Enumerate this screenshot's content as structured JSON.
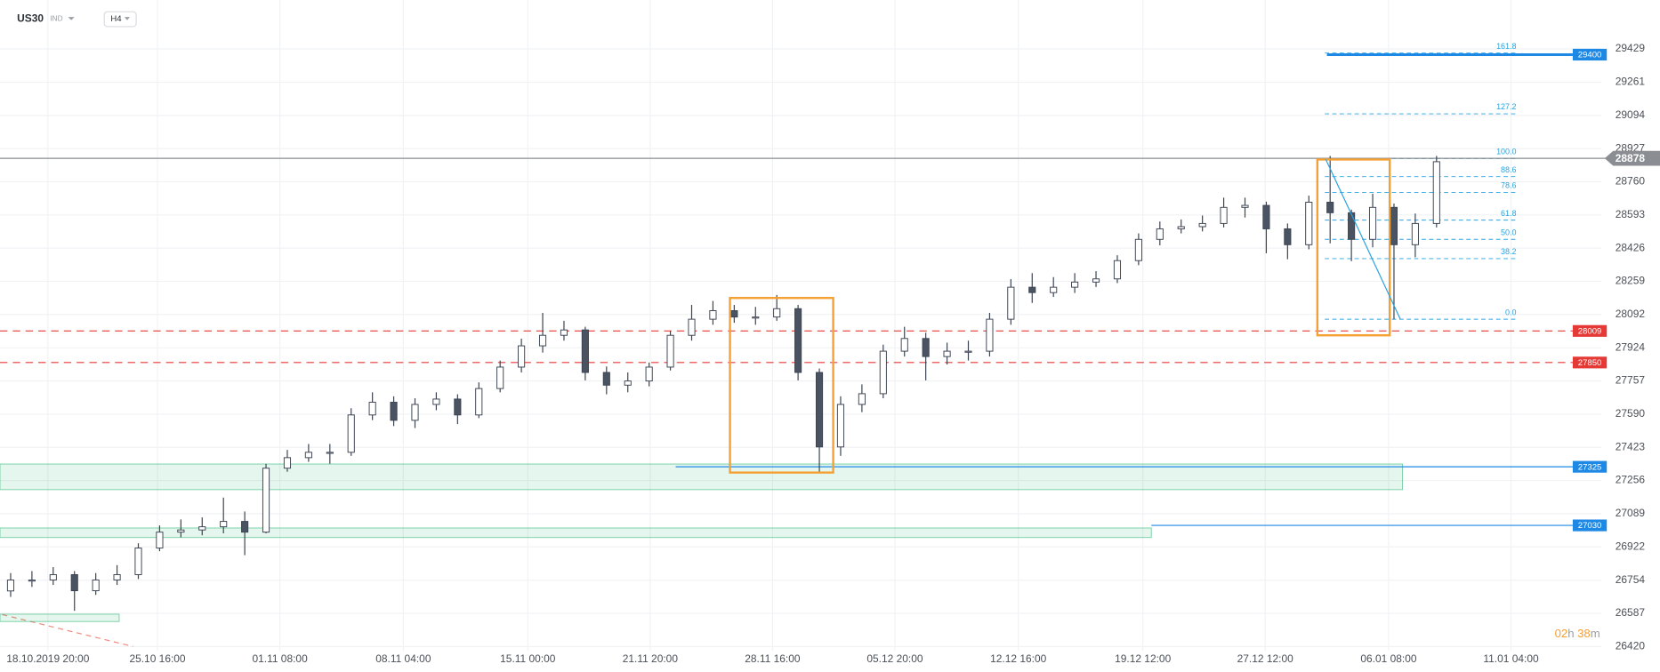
{
  "header": {
    "symbol": "US30",
    "market": "IND",
    "interval": "H4",
    "timer": [
      "02",
      "h",
      "38",
      "m"
    ]
  },
  "chart_data": {
    "type": "candlestick",
    "up_color": "#ffffff",
    "down_color": "#4a5361",
    "outline_color": "#3c4452",
    "x": [
      0.5,
      1.5,
      2.5,
      3.5,
      4.5,
      5.5,
      6.5,
      7.5,
      8.5,
      9.5,
      10.5,
      11.5,
      12.5,
      13.5,
      14.5,
      15.5,
      16.5,
      17.5,
      18.5,
      19.5,
      20.5,
      21.5,
      22.5,
      23.5,
      24.5,
      25.5,
      26.5,
      27.5,
      28.5,
      29.5,
      30.5,
      31.5,
      32.5,
      33.5,
      34.5,
      35.5,
      36.5,
      37.5,
      38.5,
      39.5,
      40.5,
      41.5,
      42.5,
      43.5,
      44.5,
      45.5,
      46.5,
      47.5,
      48.5,
      49.5,
      50.5,
      51.5,
      52.5,
      53.5,
      54.5,
      55.5,
      56.5,
      57.5,
      58.5,
      59.5,
      60.5,
      61.5,
      62.5,
      63.5,
      64.5,
      65.5,
      66.5,
      67.5
    ],
    "open": [
      26700,
      26755,
      26755,
      26782,
      26701,
      26755,
      26782,
      26916,
      26996,
      27007,
      27023,
      27050,
      26996,
      27318,
      27371,
      27398,
      27398,
      27586,
      27650,
      27559,
      27639,
      27666,
      27586,
      27719,
      27827,
      27934,
      27987,
      28014,
      27800,
      27736,
      27757,
      27827,
      27987,
      28068,
      28111,
      28079,
      28079,
      28121,
      27800,
      27425,
      27639,
      27693,
      27907,
      27971,
      27880,
      27907,
      27907,
      28068,
      28229,
      28202,
      28229,
      28255,
      28271,
      28363,
      28470,
      28523,
      28534,
      28550,
      28631,
      28641,
      28523,
      28443,
      28657,
      28604,
      28470,
      28631,
      28443,
      28550
    ],
    "high": [
      26790,
      26800,
      26820,
      26800,
      26790,
      26830,
      26940,
      27030,
      27060,
      27070,
      27170,
      27100,
      27340,
      27410,
      27440,
      27440,
      27620,
      27700,
      27680,
      27670,
      27700,
      27690,
      27750,
      27860,
      27970,
      28100,
      28060,
      28030,
      27830,
      27800,
      27850,
      28010,
      28140,
      28160,
      28140,
      28130,
      28190,
      28140,
      27820,
      27680,
      27740,
      27940,
      28030,
      28000,
      27950,
      27960,
      28100,
      28270,
      28300,
      28280,
      28300,
      28310,
      28390,
      28500,
      28560,
      28570,
      28590,
      28680,
      28680,
      28660,
      28550,
      28690,
      28890,
      28620,
      28700,
      28650,
      28600,
      28890
    ],
    "low": [
      26670,
      26720,
      26730,
      26600,
      26680,
      26730,
      26760,
      26900,
      26970,
      26980,
      26990,
      26880,
      26990,
      27300,
      27350,
      27340,
      27380,
      27560,
      27530,
      27520,
      27610,
      27540,
      27570,
      27700,
      27800,
      27900,
      27960,
      27760,
      27690,
      27700,
      27730,
      27810,
      27960,
      28040,
      28050,
      28040,
      28060,
      27760,
      27296,
      27380,
      27600,
      27670,
      27880,
      27760,
      27840,
      27860,
      27880,
      28040,
      28150,
      28180,
      28200,
      28230,
      28250,
      28340,
      28440,
      28500,
      28510,
      28530,
      28580,
      28400,
      28370,
      28420,
      28450,
      28360,
      28430,
      28068,
      28380,
      28530
    ],
    "close": [
      26755,
      26755,
      26782,
      26701,
      26755,
      26782,
      26916,
      26996,
      27007,
      27023,
      27050,
      26996,
      27318,
      27371,
      27398,
      27398,
      27586,
      27650,
      27559,
      27639,
      27666,
      27586,
      27719,
      27827,
      27934,
      27987,
      28014,
      27800,
      27736,
      27757,
      27827,
      27987,
      28068,
      28111,
      28079,
      28079,
      28121,
      27800,
      27425,
      27639,
      27693,
      27907,
      27971,
      27880,
      27907,
      27907,
      28068,
      28229,
      28202,
      28229,
      28255,
      28271,
      28363,
      28470,
      28523,
      28534,
      28550,
      28631,
      28641,
      28523,
      28443,
      28657,
      28604,
      28470,
      28631,
      28443,
      28550,
      28861
    ],
    "xlim": [
      0,
      75.25
    ],
    "xticks": [
      {
        "value": 2.25,
        "label": "18.10.2019  20:00"
      },
      {
        "value": 7.4,
        "label": "25.10  16:00"
      },
      {
        "value": 13.15,
        "label": "01.11  08:00"
      },
      {
        "value": 18.95,
        "label": "08.11  04:00"
      },
      {
        "value": 24.8,
        "label": "15.11  00:00"
      },
      {
        "value": 30.55,
        "label": "21.11  20:00"
      },
      {
        "value": 36.3,
        "label": "28.11  16:00"
      },
      {
        "value": 42.05,
        "label": "05.12  20:00"
      },
      {
        "value": 47.85,
        "label": "12.12  16:00"
      },
      {
        "value": 53.7,
        "label": "19.12  12:00"
      },
      {
        "value": 59.45,
        "label": "27.12  12:00"
      },
      {
        "value": 65.25,
        "label": "06.01  08:00"
      },
      {
        "value": 71,
        "label": "11.01  04:00"
      }
    ],
    "ylim": [
      26399,
      29675
    ],
    "yticks": [
      29429,
      29261,
      29094,
      28927,
      28760,
      28593,
      28426,
      28259,
      28092,
      27924,
      27757,
      27590,
      27423,
      27256,
      27089,
      26922,
      26754,
      26587,
      26420
    ],
    "grid": true,
    "current_price": {
      "value": 28878,
      "color": "#8a8d91"
    },
    "levels": [
      {
        "value": 29400,
        "color": "#1e88e5",
        "dashed": false,
        "width": 2.5,
        "x": 62.35
      },
      {
        "value": 28009,
        "color": "#e53935",
        "dashed": true,
        "width": 1,
        "x": 0
      },
      {
        "value": 27850,
        "color": "#e53935",
        "dashed": true,
        "width": 1,
        "x": 0
      },
      {
        "value": 27325,
        "color": "#1e88e5",
        "dashed": false,
        "width": 1,
        "x": 31.75
      },
      {
        "value": 27030,
        "color": "#1e88e5",
        "dashed": false,
        "width": 1,
        "x": 54.1
      }
    ],
    "zones": [
      {
        "x": [
          0,
          65.9
        ],
        "y": [
          27339,
          27210
        ],
        "color": "#2bb673"
      },
      {
        "x": [
          0,
          54.1
        ],
        "y": [
          27017,
          26969
        ],
        "color": "#2bb673"
      },
      {
        "x": [
          0,
          5.6
        ],
        "y": [
          26583,
          26546
        ],
        "color": "#2bb673"
      }
    ],
    "boxes": [
      {
        "x": [
          34.3,
          39.15
        ],
        "y": [
          28175,
          27296
        ],
        "color": "#f5a033"
      },
      {
        "x": [
          61.9,
          65.3
        ],
        "y": [
          28872,
          27987
        ],
        "color": "#f5a033"
      }
    ],
    "fib": {
      "x": [
        62.25,
        71.25
      ],
      "color": "#29a3e0",
      "levels": [
        {
          "label": "161.8",
          "value": 29408
        },
        {
          "label": "127.2",
          "value": 29102
        },
        {
          "label": "100.0",
          "value": 28877
        },
        {
          "label": "88.6",
          "value": 28786
        },
        {
          "label": "78.6",
          "value": 28706
        },
        {
          "label": "61.8",
          "value": 28567
        },
        {
          "label": "50.0",
          "value": 28470
        },
        {
          "label": "38.2",
          "value": 28373
        },
        {
          "label": "0.0",
          "value": 28068
        }
      ]
    },
    "trend_line": {
      "x": [
        62.3,
        65.8
      ],
      "y": [
        28872,
        28068
      ],
      "color": "#29a3e0"
    }
  }
}
